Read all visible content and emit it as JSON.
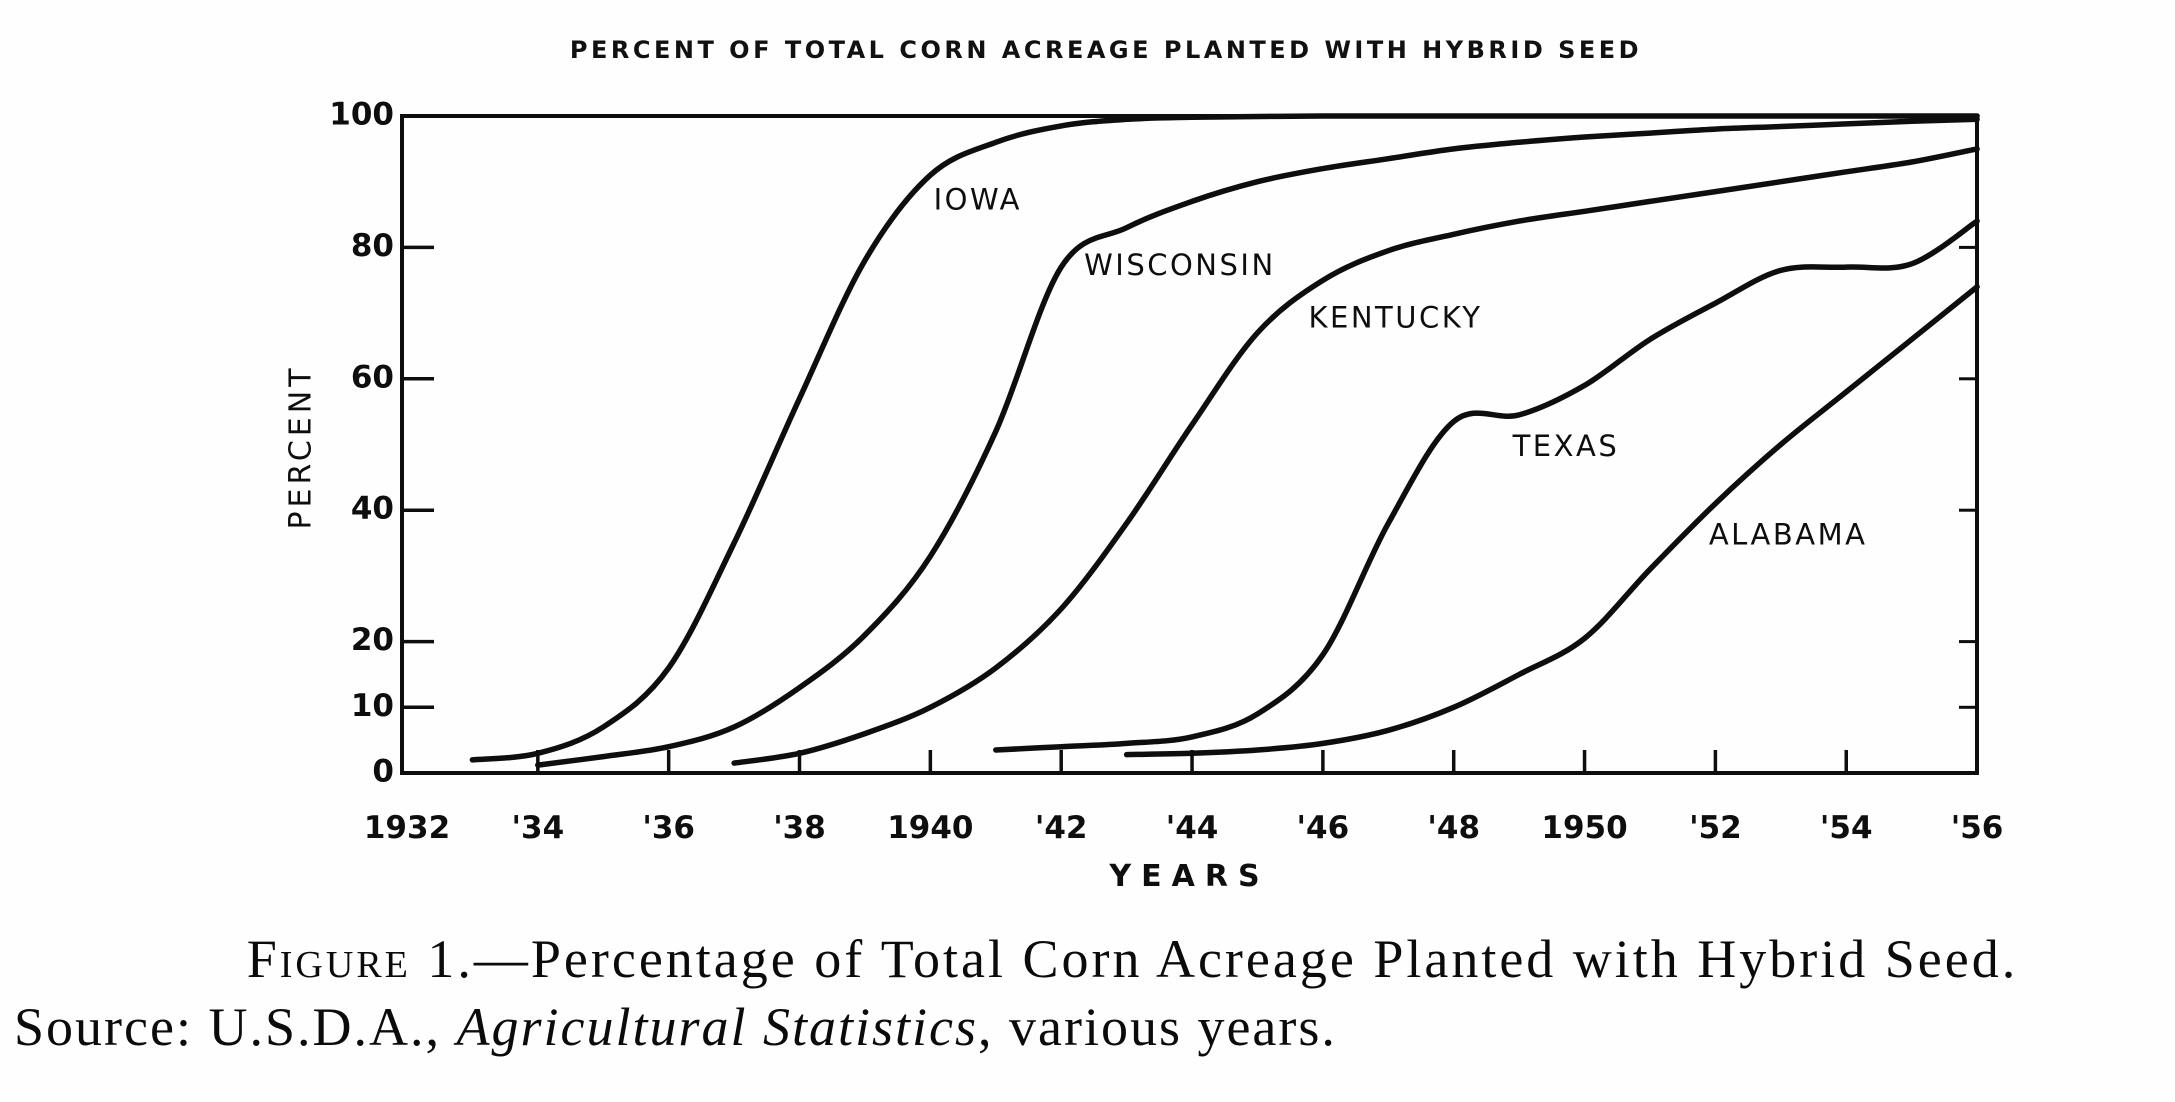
{
  "title": "PERCENT OF TOTAL CORN ACREAGE PLANTED WITH HYBRID SEED",
  "chart_data": {
    "type": "line",
    "title": "PERCENT OF TOTAL CORN ACREAGE PLANTED WITH HYBRID SEED",
    "xlabel": "YEARS",
    "ylabel": "PERCENT",
    "xlim": [
      1932,
      1956
    ],
    "ylim": [
      0,
      100
    ],
    "grid": false,
    "legend": "inline-curve-labels",
    "x_ticks": [
      {
        "label": "1932",
        "year": 1932,
        "tick": false
      },
      {
        "label": "'34",
        "year": 1934,
        "tick": true
      },
      {
        "label": "'36",
        "year": 1936,
        "tick": true
      },
      {
        "label": "'38",
        "year": 1938,
        "tick": true
      },
      {
        "label": "1940",
        "year": 1940,
        "tick": true
      },
      {
        "label": "'42",
        "year": 1942,
        "tick": true
      },
      {
        "label": "'44",
        "year": 1944,
        "tick": true
      },
      {
        "label": "'46",
        "year": 1946,
        "tick": true
      },
      {
        "label": "'48",
        "year": 1948,
        "tick": true
      },
      {
        "label": "1950",
        "year": 1950,
        "tick": true
      },
      {
        "label": "'52",
        "year": 1952,
        "tick": true
      },
      {
        "label": "'54",
        "year": 1954,
        "tick": true
      },
      {
        "label": "'56",
        "year": 1956,
        "tick": true
      }
    ],
    "y_ticks": [
      {
        "label": "100",
        "value": 100,
        "tick": false
      },
      {
        "label": "80",
        "value": 80,
        "tick": true
      },
      {
        "label": "60",
        "value": 60,
        "tick": true
      },
      {
        "label": "40",
        "value": 40,
        "tick": true
      },
      {
        "label": "20",
        "value": 20,
        "tick": true
      },
      {
        "label": "10",
        "value": 10,
        "tick": true
      },
      {
        "label": "0",
        "value": 0,
        "tick": false
      }
    ],
    "series": [
      {
        "name": "IOWA",
        "label_anchor": [
          1940.05,
          87
        ],
        "points": [
          [
            1933,
            2
          ],
          [
            1934,
            3
          ],
          [
            1935,
            7
          ],
          [
            1936,
            16
          ],
          [
            1937,
            35
          ],
          [
            1938,
            57
          ],
          [
            1939,
            78
          ],
          [
            1940,
            91
          ],
          [
            1941,
            96
          ],
          [
            1942,
            98.5
          ],
          [
            1943,
            99.5
          ],
          [
            1944,
            99.8
          ],
          [
            1946,
            100
          ],
          [
            1948,
            100
          ],
          [
            1950,
            100
          ],
          [
            1952,
            100
          ],
          [
            1954,
            100
          ],
          [
            1956,
            100
          ]
        ]
      },
      {
        "name": "WISCONSIN",
        "label_anchor": [
          1942.35,
          77
        ],
        "points": [
          [
            1934,
            1.2
          ],
          [
            1935,
            2.5
          ],
          [
            1936,
            4
          ],
          [
            1937,
            7
          ],
          [
            1938,
            13
          ],
          [
            1939,
            21
          ],
          [
            1940,
            33
          ],
          [
            1941,
            52
          ],
          [
            1942,
            77
          ],
          [
            1943,
            83
          ],
          [
            1944,
            87
          ],
          [
            1945,
            90
          ],
          [
            1946,
            92
          ],
          [
            1947,
            93.5
          ],
          [
            1948,
            95
          ],
          [
            1949,
            96
          ],
          [
            1950,
            96.8
          ],
          [
            1951,
            97.4
          ],
          [
            1952,
            98
          ],
          [
            1953,
            98.4
          ],
          [
            1954,
            98.8
          ],
          [
            1955,
            99.2
          ],
          [
            1956,
            99.5
          ]
        ]
      },
      {
        "name": "KENTUCKY",
        "label_anchor": [
          1945.78,
          69
        ],
        "points": [
          [
            1937,
            1.5
          ],
          [
            1938,
            3
          ],
          [
            1939,
            6
          ],
          [
            1940,
            10
          ],
          [
            1941,
            16
          ],
          [
            1942,
            25
          ],
          [
            1943,
            38
          ],
          [
            1944,
            53
          ],
          [
            1945,
            67
          ],
          [
            1946,
            75
          ],
          [
            1947,
            79.5
          ],
          [
            1948,
            82
          ],
          [
            1949,
            84
          ],
          [
            1950,
            85.5
          ],
          [
            1951,
            87
          ],
          [
            1952,
            88.5
          ],
          [
            1953,
            90
          ],
          [
            1954,
            91.5
          ],
          [
            1955,
            93
          ],
          [
            1956,
            95
          ]
        ]
      },
      {
        "name": "TEXAS",
        "label_anchor": [
          1948.9,
          49.5
        ],
        "points": [
          [
            1941,
            3.5
          ],
          [
            1942,
            4
          ],
          [
            1943,
            4.5
          ],
          [
            1944,
            5.5
          ],
          [
            1945,
            9
          ],
          [
            1946,
            18
          ],
          [
            1947,
            38
          ],
          [
            1948,
            53.5
          ],
          [
            1949,
            54.5
          ],
          [
            1950,
            59
          ],
          [
            1951,
            66
          ],
          [
            1952,
            71.5
          ],
          [
            1953,
            76.5
          ],
          [
            1954,
            77
          ],
          [
            1955,
            77.5
          ],
          [
            1956,
            84
          ]
        ]
      },
      {
        "name": "ALABAMA",
        "label_anchor": [
          1951.9,
          36
        ],
        "points": [
          [
            1943,
            2.8
          ],
          [
            1944,
            3
          ],
          [
            1945,
            3.5
          ],
          [
            1946,
            4.5
          ],
          [
            1947,
            6.5
          ],
          [
            1948,
            10
          ],
          [
            1949,
            15
          ],
          [
            1950,
            20.5
          ],
          [
            1951,
            31
          ],
          [
            1952,
            41
          ],
          [
            1953,
            50
          ],
          [
            1954,
            58
          ],
          [
            1955,
            66
          ],
          [
            1956,
            74
          ]
        ]
      }
    ]
  },
  "caption": {
    "figure_word": "Figure",
    "line1_rest": " 1.—Percentage of Total Corn Acreage Planted with Hybrid Seed.",
    "source_prefix": "Source: U.S.D.A., ",
    "source_italic": "Agricultural Statistics",
    "source_suffix": ", various years."
  },
  "colors": {
    "ink": "#0e0e0e",
    "paper": "#fefefe"
  }
}
